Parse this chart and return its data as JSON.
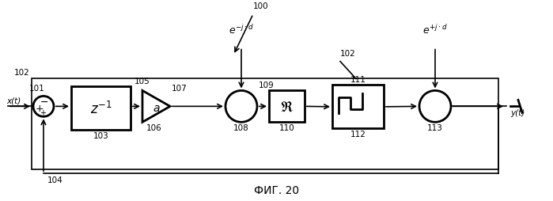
{
  "title": "ФИГ. 20",
  "background_color": "#ffffff",
  "label_100": "100",
  "label_102_top": "102",
  "label_e1": "e⁻ʲ·ᵈ",
  "label_e2": "e⁺ʲ·ᵈ",
  "labels": {
    "xt": "x(t)",
    "yt": "y(t)",
    "101": "101",
    "102": "102",
    "103": "103",
    "104": "104",
    "105": "105",
    "106": "106",
    "107": "107",
    "108": "108",
    "109": "109",
    "110": "110",
    "111": "111",
    "112": "112",
    "113": "113"
  }
}
